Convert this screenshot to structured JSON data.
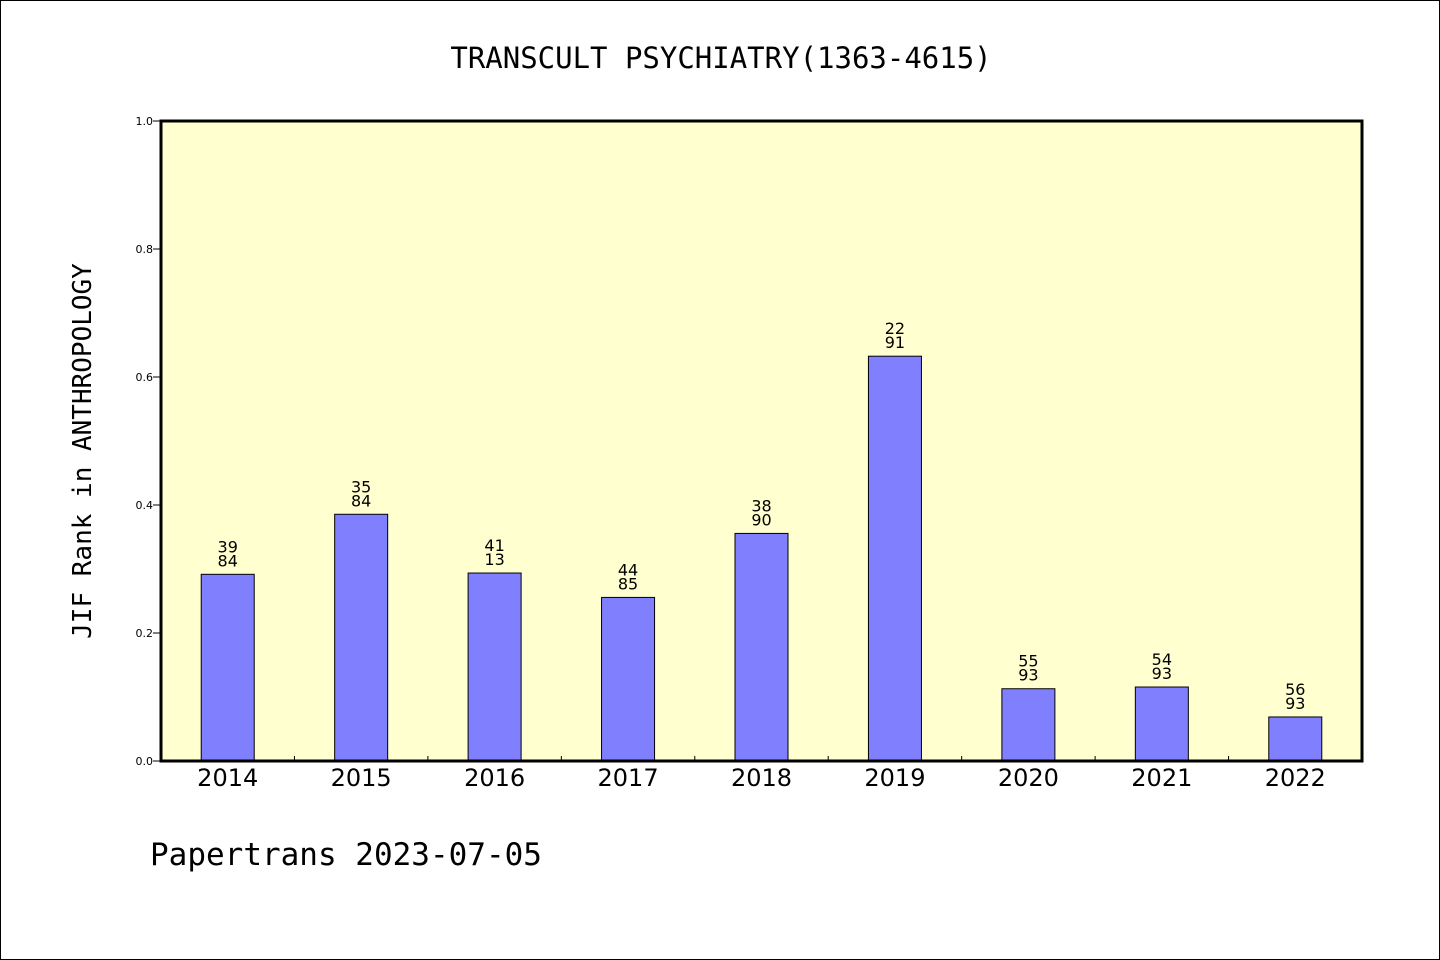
{
  "chart_data": {
    "type": "bar",
    "title": "TRANSCULT PSYCHIATRY(1363-4615)",
    "ylabel": "JIF Rank in ANTHROPOLOGY",
    "xlabel": "",
    "categories": [
      "2014",
      "2015",
      "2016",
      "2017",
      "2018",
      "2019",
      "2020",
      "2021",
      "2022"
    ],
    "values": [
      0.2917,
      0.3855,
      0.2937,
      0.2556,
      0.3556,
      0.6325,
      0.1129,
      0.1156,
      0.0688
    ],
    "data_labels": [
      [
        "39",
        "84"
      ],
      [
        "35",
        "84"
      ],
      [
        "41",
        "13"
      ],
      [
        "44",
        "85"
      ],
      [
        "38",
        "90"
      ],
      [
        "22",
        "91"
      ],
      [
        "55",
        "93"
      ],
      [
        "54",
        "93"
      ],
      [
        "56",
        "93"
      ]
    ],
    "ylim": [
      0,
      1.0
    ],
    "yticks": [
      "0.0",
      "0.2",
      "0.4",
      "0.6",
      "0.8",
      "1.0"
    ],
    "grid": false,
    "colors": {
      "bar_fill": "#8080ff",
      "bar_stroke": "#000000",
      "plot_background": "#ffffd0",
      "axis": "#000000"
    }
  },
  "footer": {
    "text": "Papertrans 2023-07-05"
  }
}
